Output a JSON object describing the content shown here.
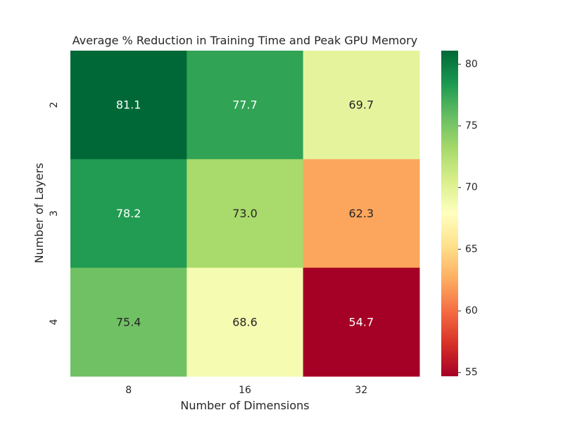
{
  "chart_data": {
    "type": "heatmap",
    "title": "Average % Reduction in Training Time and Peak GPU Memory",
    "xlabel": "Number of Dimensions",
    "ylabel": "Number of Layers",
    "x_categories": [
      "8",
      "16",
      "32"
    ],
    "y_categories": [
      "2",
      "3",
      "4"
    ],
    "values": [
      [
        81.1,
        77.7,
        69.7
      ],
      [
        78.2,
        73.0,
        62.3
      ],
      [
        75.4,
        68.6,
        54.7
      ]
    ],
    "value_format": "0.1f",
    "colormap": "RdYlGn",
    "vmin": 54.7,
    "vmax": 81.1,
    "colorbar_ticks": [
      55,
      60,
      65,
      70,
      75,
      80
    ],
    "colorbar_tick_labels": [
      "55",
      "60",
      "65",
      "70",
      "75",
      "80"
    ],
    "grid": false
  }
}
